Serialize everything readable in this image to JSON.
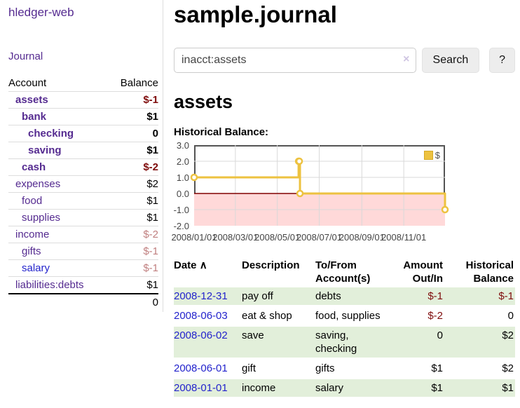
{
  "app": {
    "title": "hledger-web"
  },
  "colors": {
    "link_purple": "#552b90",
    "link_blue": "#2323cc",
    "negative_strong": "#7f0d0d",
    "negative_dim": "#c07f7f",
    "row_shade_green": "#e2efda",
    "series_gold": "#edc240"
  },
  "sidebar": {
    "nav_journal": "Journal",
    "accounts": {
      "col_account": "Account",
      "col_balance": "Balance",
      "rows": [
        {
          "name": "assets",
          "balance": "$-1",
          "depth": 1
        },
        {
          "name": "bank",
          "balance": "$1",
          "depth": 2
        },
        {
          "name": "checking",
          "balance": "0",
          "depth": 3
        },
        {
          "name": "saving",
          "balance": "$1",
          "depth": 3
        },
        {
          "name": "cash",
          "balance": "$-2",
          "depth": 2
        },
        {
          "name": "expenses",
          "balance": "$2",
          "depth": 1
        },
        {
          "name": "food",
          "balance": "$1",
          "depth": 2
        },
        {
          "name": "supplies",
          "balance": "$1",
          "depth": 2
        },
        {
          "name": "income",
          "balance": "$-2",
          "depth": 1
        },
        {
          "name": "gifts",
          "balance": "$-1",
          "depth": 2
        },
        {
          "name": "salary",
          "balance": "$-1",
          "depth": 2
        },
        {
          "name": "liabilities:debts",
          "balance": "$1",
          "depth": 1
        }
      ],
      "total": "0"
    }
  },
  "main": {
    "title": "sample.journal",
    "search": {
      "value": "inacct:assets",
      "clear_icon": "×",
      "search_button": "Search",
      "help_button": "?"
    },
    "account_heading": "assets",
    "chart_heading": "Historical Balance:",
    "register": {
      "sort_icon": "∧",
      "headers": {
        "date": "Date",
        "description": "Description",
        "accounts_l1": "To/From",
        "accounts_l2": "Account(s)",
        "amount_l1": "Amount",
        "amount_l2": "Out/In",
        "balance_l1": "Historical",
        "balance_l2": "Balance"
      },
      "rows": [
        {
          "date": "2008-12-31",
          "description": "pay off",
          "acct1": "debts",
          "acct2": "",
          "amount": "$-1",
          "balance": "$-1"
        },
        {
          "date": "2008-06-03",
          "description": "eat & shop",
          "acct1": "food, supplies",
          "acct2": "",
          "amount": "$-2",
          "balance": "0"
        },
        {
          "date": "2008-06-02",
          "description": "save",
          "acct1": "saving,",
          "acct2": "checking",
          "amount": "0",
          "balance": "$2"
        },
        {
          "date": "2008-06-01",
          "description": "gift",
          "acct1": "gifts",
          "acct2": "",
          "amount": "$1",
          "balance": "$2"
        },
        {
          "date": "2008-01-01",
          "description": "income",
          "acct1": "salary",
          "acct2": "",
          "amount": "$1",
          "balance": "$1"
        }
      ]
    }
  },
  "chart_data": {
    "type": "line",
    "style": "steps",
    "title": "Historical Balance",
    "series": [
      {
        "name": "$",
        "points": [
          [
            "2008-01-01",
            1
          ],
          [
            "2008-06-01",
            2
          ],
          [
            "2008-06-02",
            2
          ],
          [
            "2008-06-03",
            0
          ],
          [
            "2008-12-31",
            -1
          ]
        ]
      }
    ],
    "x_range": [
      "2008-01-01",
      "2008-12-31"
    ],
    "y_range": [
      -2,
      3
    ],
    "x_ticks": [
      {
        "date": "2008-01-01",
        "label": "2008/01/01"
      },
      {
        "date": "2008-03-01",
        "label": "2008/03/01"
      },
      {
        "date": "2008-05-01",
        "label": "2008/05/01"
      },
      {
        "date": "2008-07-01",
        "label": "2008/07/01"
      },
      {
        "date": "2008-09-01",
        "label": "2008/09/01"
      },
      {
        "date": "2008-11-01",
        "label": "2008/11/01"
      }
    ],
    "y_ticks": [
      {
        "value": 3,
        "label": "3.0"
      },
      {
        "value": 2,
        "label": "2.0"
      },
      {
        "value": 1,
        "label": "1.0"
      },
      {
        "value": 0,
        "label": "0.0"
      },
      {
        "value": -1,
        "label": "-1.0"
      },
      {
        "value": -2,
        "label": "-2.0"
      }
    ],
    "legend": {
      "label": "$",
      "position": "top-right"
    },
    "grid": true,
    "colors": {
      "series": "#edc240",
      "marker_fill": "#ffffff",
      "negative_area": "#ffd9d9",
      "zero_line": "#800000",
      "grid": "#d9d9d9",
      "border": "#545454"
    }
  }
}
